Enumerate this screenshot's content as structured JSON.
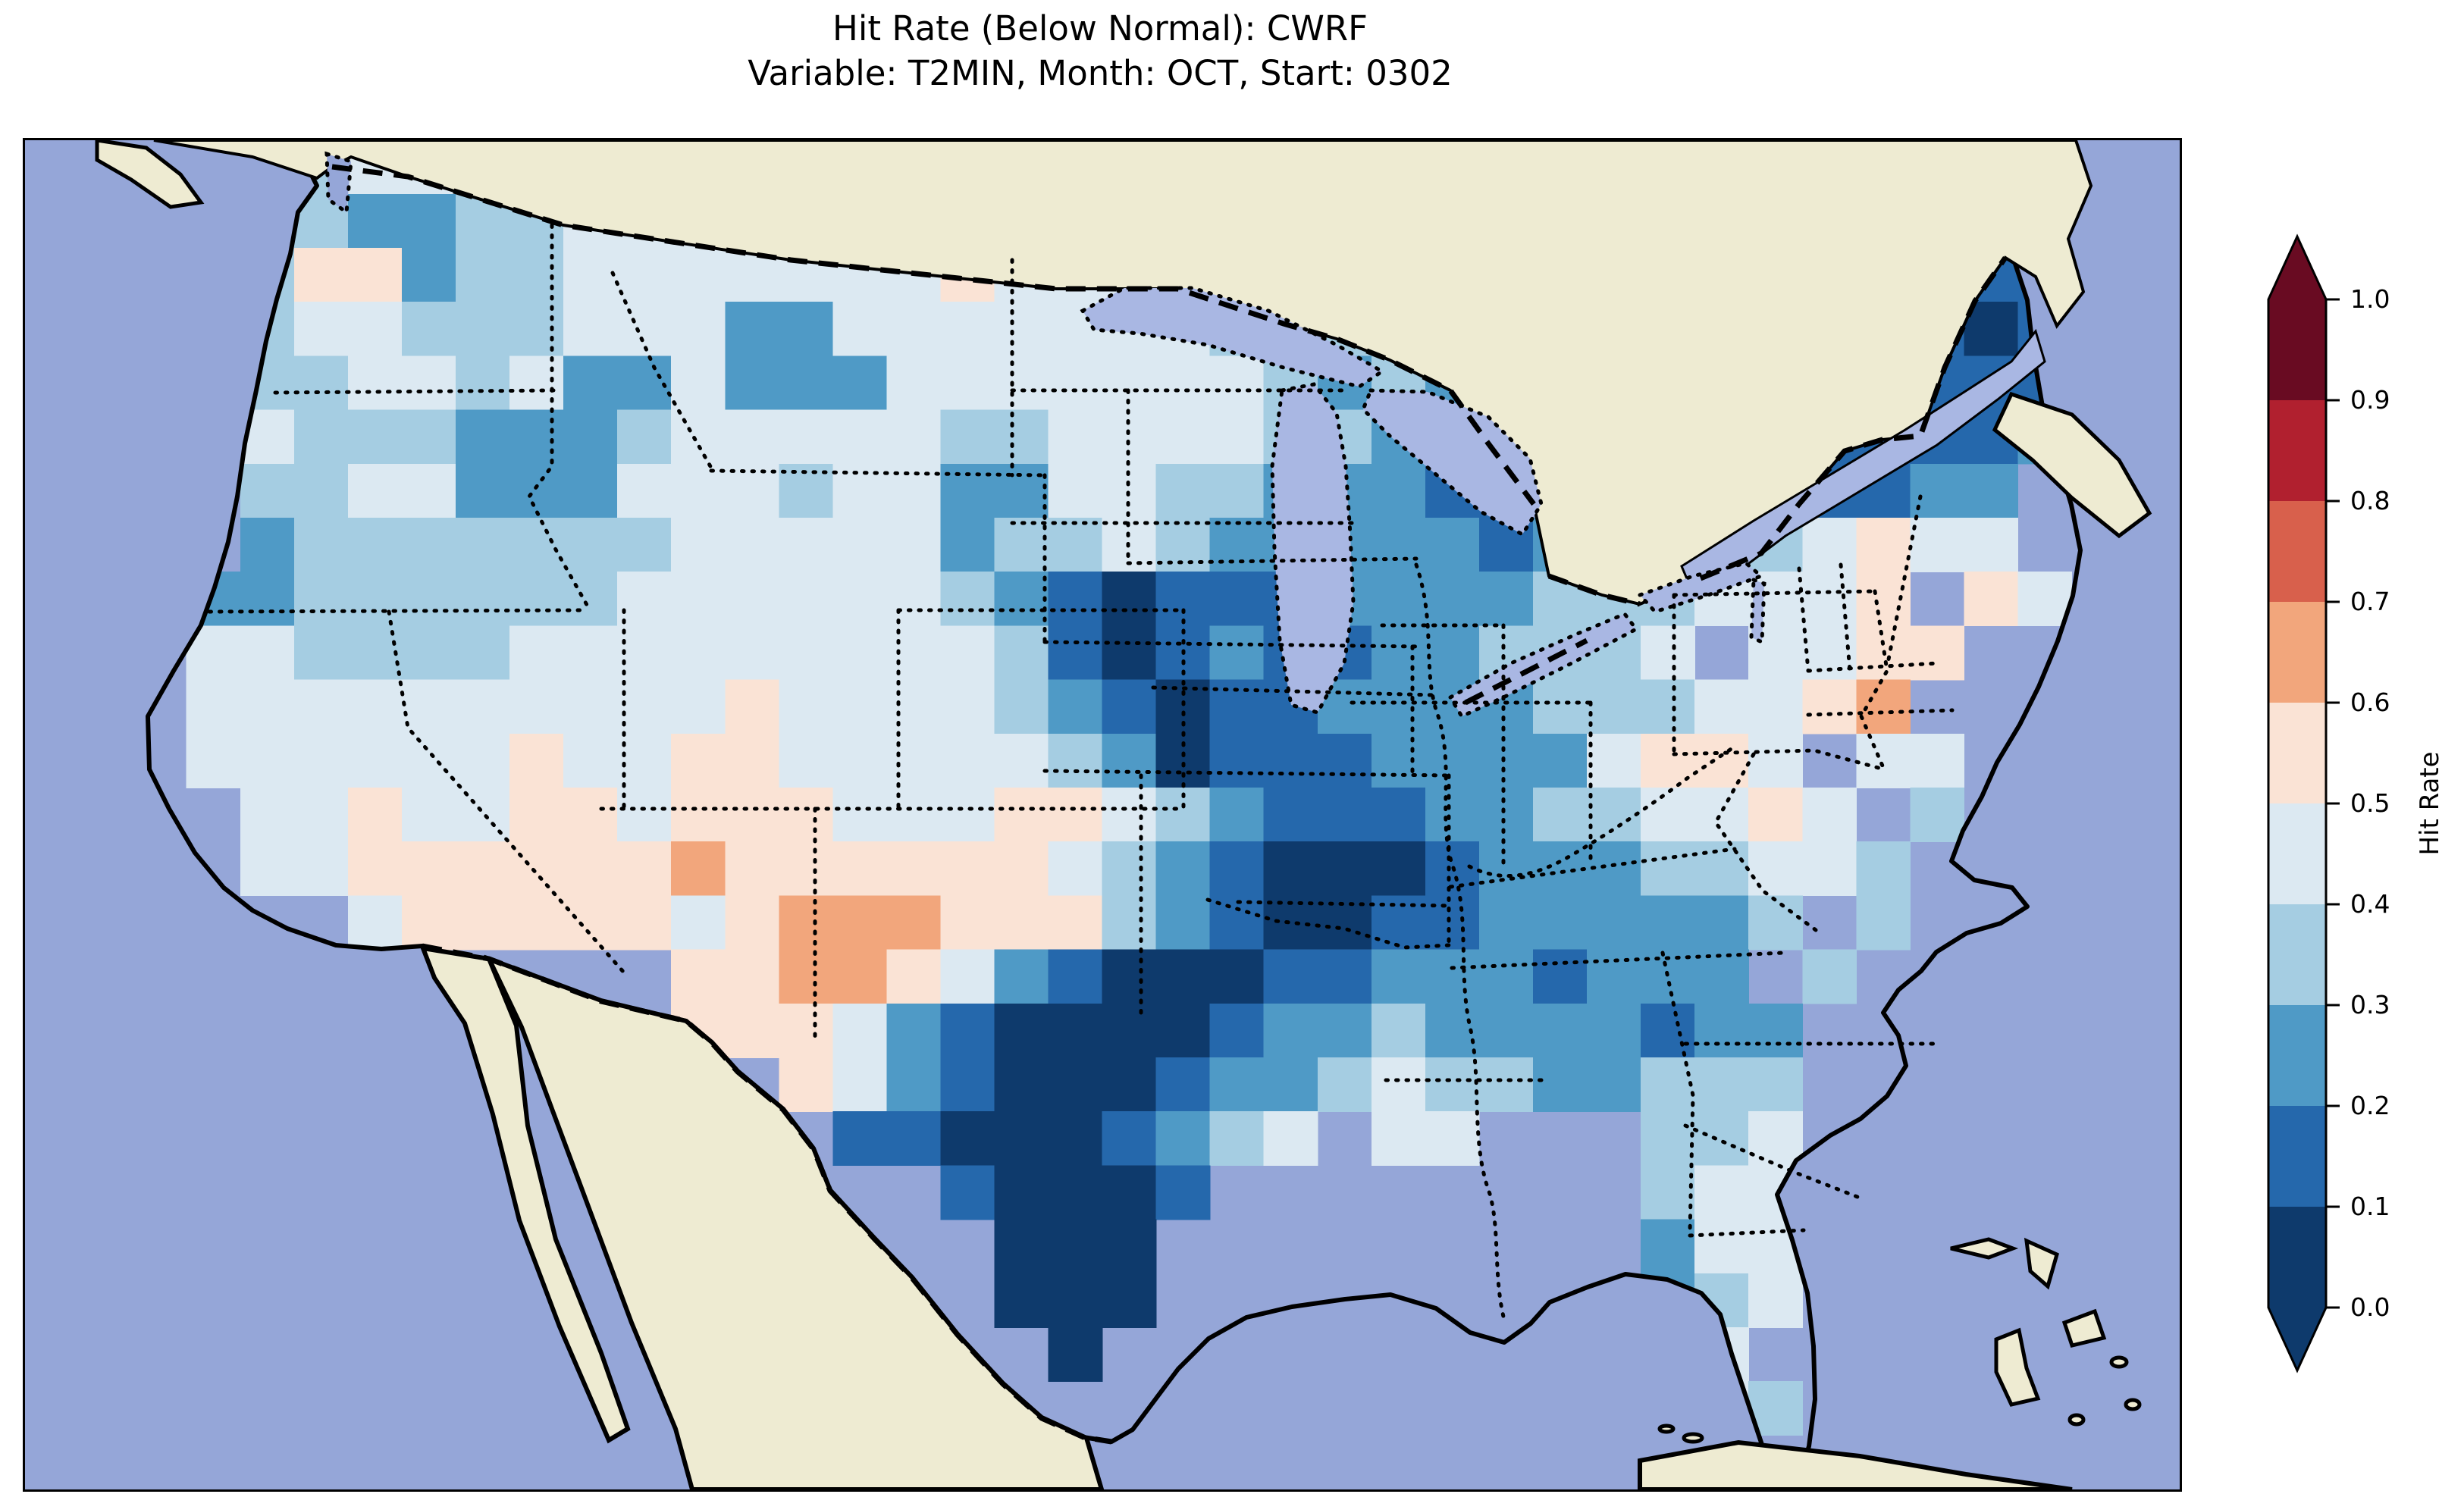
{
  "title": {
    "line1": "Hit Rate (Below Normal): CWRF",
    "line2": "Variable: T2MIN, Month: OCT, Start: 0302"
  },
  "colorbar": {
    "label": "Hit Rate",
    "ticks": [
      "1.0",
      "0.9",
      "0.8",
      "0.7",
      "0.6",
      "0.5",
      "0.4",
      "0.3",
      "0.2",
      "0.1",
      "0.0"
    ],
    "bin_colors": [
      "#0e3a6c",
      "#2568ac",
      "#4f9ac6",
      "#a5cde2",
      "#dce9f2",
      "#fae3d5",
      "#f2a67c",
      "#d8604c",
      "#b1202f",
      "#690b22"
    ],
    "arrow_over_color": "#690b22",
    "arrow_under_color": "#0e3a6c"
  },
  "map": {
    "ocean_color": "#95a6d8",
    "land_color": "#eeebd2",
    "lake_color": "#a9b7e3",
    "coast_color": "#000000"
  },
  "chart_data": {
    "type": "heatmap",
    "title": "Hit Rate (Below Normal): CWRF\nVariable: T2MIN, Month: OCT, Start: 0302",
    "metric": "Hit Rate (Below Normal)",
    "model": "CWRF",
    "variable": "T2MIN",
    "month": "OCT",
    "start": "0302",
    "region": "Contiguous United States",
    "colormap": "RdBu reversed (blue = low hit rate, red = high hit rate)",
    "colorbar_label": "Hit Rate",
    "vmin": 0.0,
    "vmax": 1.0,
    "bin_edges": [
      0.0,
      0.1,
      0.2,
      0.3,
      0.4,
      0.5,
      0.6,
      0.7,
      0.8,
      0.9,
      1.0
    ],
    "legend_position": "right vertical colorbar with pointed over/under arrows",
    "grid_cols": 40,
    "grid_rows_count": 25,
    "grid_legend": {
      ".": "no data / outside US",
      "0": "0.0-0.1",
      "1": "0.1-0.2",
      "2": "0.2-0.3",
      "3": "0.3-0.4",
      "4": "0.4-0.5",
      "5": "0.5-0.6",
      "6": "0.6-0.7"
    },
    "grid_rows": [
      "....334423..............................",
      "....3322334444..........................",
      "....355233444444454444433...........11..",
      "....3443334442244444443333.........101..",
      "....334434224222444444432322.......111..",
      "....433322234444433444433212.....11112..",
      "....334422244434422443322211.33221122...",
      "....233333334444423343222221222234544...",
      "...22333333444444321011122223334445 54..",
      "...4433334444444443101211223334 4455....",
      "...44444444445444432101122223334456.....",
      "...444444544554444432011122224554 44....",
      "....445445545554445543211122334454 3....",
      "....4455555565555554321000122233443.....",
      "......455555456665553210011222223 3.....",
      "............55665421000112221222 3......",
      "............555421000012232222122.......",
      "..............5421000122343322333.......",
      "...............110001234 44...334.......",
      ".................10001........344.......",
      "..................000.........244.......",
      "..................000.........234.......",
      "...................0..........44........",
      "...............................43.......",
      "........................................"
    ],
    "notable_features": [
      "Darkest (0.0-0.1) hit-rate band from central/south Texas through Oklahoma into Arkansas",
      "Dark (0.0-0.2) core over SW Iowa / NE Missouri and north-central Maine",
      "Medium-low (0.1-0.3) over upper Midwest, Michigan, Georgia and northern New England",
      "Pale pink (0.5-0.6) over Arizona / New Mexico / west Texas, SE Colorado, coastal New Jersey and Virginia",
      "Salmon (0.6-0.7) blob over southern New Mexico and isolated cells in Arizona and on the New Jersey coast"
    ]
  }
}
